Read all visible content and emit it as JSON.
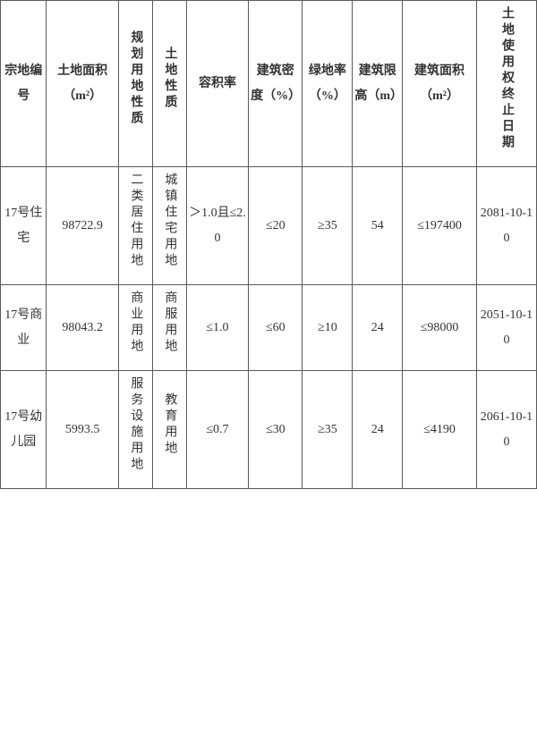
{
  "table": {
    "columns": [
      "宗地编号",
      "土地面积（m²）",
      "规划用地性质",
      "土地性质",
      "容积率",
      "建筑密度（%）",
      "绿地率（%）",
      "建筑限高（m）",
      "建筑面积（m²）",
      "土地使用权终止日期"
    ],
    "rows": [
      {
        "parcel": "17号住宅",
        "area": "98722.9",
        "plan_use": "二类居住用地",
        "land_use": "城镇住宅用地",
        "far": "＞1.0且≤2.0",
        "density": "≤20",
        "green": "≥35",
        "height": "54",
        "bld_area": "≤197400",
        "expiry": "2081-10-10"
      },
      {
        "parcel": "17号商业",
        "area": "98043.2",
        "plan_use": "商业用地",
        "land_use": "商服用地",
        "far": "≤1.0",
        "density": "≤60",
        "green": "≥10",
        "height": "24",
        "bld_area": "≤98000",
        "expiry": "2051-10-10"
      },
      {
        "parcel": "17号幼儿园",
        "area": "5993.5",
        "plan_use": "服务设施用地",
        "land_use": "教育用地",
        "far": "≤0.7",
        "density": "≤30",
        "green": "≥35",
        "height": "24",
        "bld_area": "≤4190",
        "expiry": "2061-10-10"
      }
    ],
    "border_color": "#5a5a5a",
    "text_color": "#333333",
    "background_color": "#ffffff",
    "font_family": "SimSun",
    "header_fontsize": 14,
    "cell_fontsize": 14
  }
}
